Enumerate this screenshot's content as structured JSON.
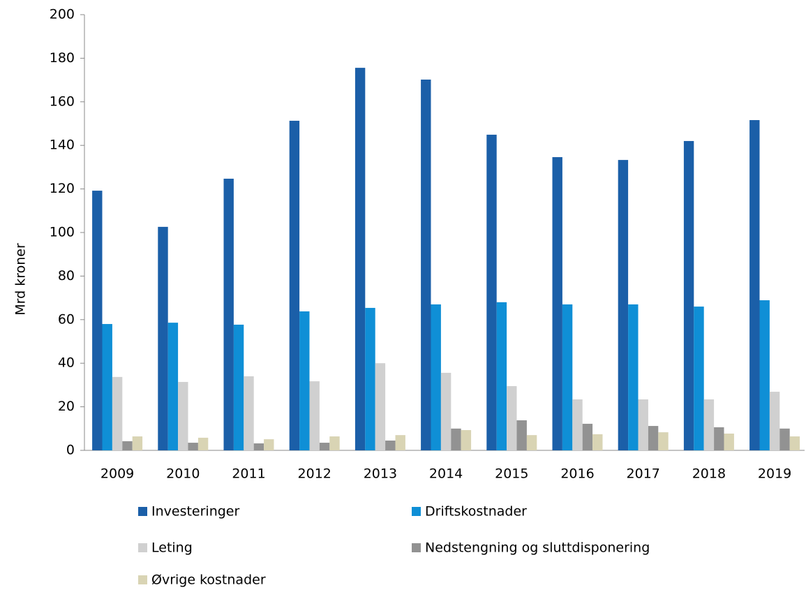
{
  "chart_data": {
    "type": "bar",
    "ylabel": "Mrd kroner",
    "categories": [
      "2009",
      "2010",
      "2011",
      "2012",
      "2013",
      "2014",
      "2015",
      "2016",
      "2017",
      "2018",
      "2019"
    ],
    "series": [
      {
        "name": "Investeringer",
        "color": "#1b5fa8",
        "values": [
          119.2,
          102.6,
          124.7,
          151.3,
          175.6,
          170.2,
          144.9,
          134.6,
          133.3,
          142,
          151.6
        ]
      },
      {
        "name": "Driftskostnader",
        "color": "#0f8fd6",
        "values": [
          58,
          58.6,
          57.7,
          63.8,
          65.4,
          67,
          68,
          67,
          67,
          66,
          68.9
        ]
      },
      {
        "name": "Leting",
        "color": "#d0d0d0",
        "values": [
          33.7,
          31.4,
          34,
          31.7,
          40,
          35.6,
          29.5,
          23.4,
          23.4,
          23.4,
          26.9
        ]
      },
      {
        "name": "Nedstengning og sluttdisponering",
        "color": "#929292",
        "values": [
          4.2,
          3.5,
          3.2,
          3.5,
          4.5,
          10,
          13.8,
          12.2,
          11.2,
          10.6,
          10
        ]
      },
      {
        "name": "Øvrige kostnader",
        "color": "#d9d4b4",
        "values": [
          6.4,
          5.8,
          5.1,
          6.4,
          7,
          9.3,
          7,
          7.4,
          8.3,
          7.7,
          6.4
        ]
      }
    ],
    "ylim": [
      0,
      200
    ],
    "yticks": [
      0,
      20,
      40,
      60,
      80,
      100,
      120,
      140,
      160,
      180,
      200
    ],
    "grid": false
  }
}
